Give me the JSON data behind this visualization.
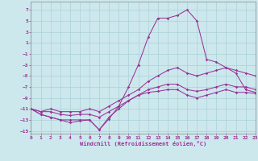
{
  "xlabel": "Windchill (Refroidissement éolien,°C)",
  "bg_color": "#cce8ed",
  "grid_color": "#aad0d8",
  "line_color": "#993399",
  "xlim": [
    0,
    23
  ],
  "ylim": [
    -15.5,
    8.5
  ],
  "xticks": [
    0,
    1,
    2,
    3,
    4,
    5,
    6,
    7,
    8,
    9,
    10,
    11,
    12,
    13,
    14,
    15,
    16,
    17,
    18,
    19,
    20,
    21,
    22,
    23
  ],
  "yticks": [
    -15,
    -13,
    -11,
    -9,
    -7,
    -5,
    -3,
    -1,
    1,
    3,
    5,
    7
  ],
  "lines": [
    {
      "x": [
        0,
        1,
        2,
        3,
        4,
        5,
        6,
        7,
        8,
        9,
        10,
        11,
        12,
        13,
        14,
        15,
        16,
        17,
        18,
        19,
        20,
        21,
        22,
        23
      ],
      "y": [
        -11,
        -12,
        -12.5,
        -13,
        -13.5,
        -13.2,
        -13,
        -14.8,
        -12.5,
        -11,
        -9.5,
        -8.5,
        -8,
        -7.8,
        -7.5,
        -7.5,
        -8.5,
        -9,
        -8.5,
        -8,
        -7.5,
        -8,
        -8,
        -8.2
      ]
    },
    {
      "x": [
        0,
        1,
        2,
        3,
        4,
        5,
        6,
        7,
        8,
        9,
        10,
        11,
        12,
        13,
        14,
        15,
        16,
        17,
        18,
        19,
        20,
        21,
        22,
        23
      ],
      "y": [
        -11,
        -11.5,
        -11.5,
        -12,
        -12.2,
        -12,
        -12,
        -12.5,
        -11.5,
        -10.5,
        -9.5,
        -8.5,
        -7.5,
        -7,
        -6.5,
        -6.5,
        -7.5,
        -7.8,
        -7.5,
        -7,
        -6.5,
        -7,
        -7,
        -7.5
      ]
    },
    {
      "x": [
        0,
        1,
        2,
        3,
        4,
        5,
        6,
        7,
        8,
        9,
        10,
        11,
        12,
        13,
        14,
        15,
        16,
        17,
        18,
        19,
        20,
        21,
        22,
        23
      ],
      "y": [
        -11,
        -11.5,
        -11,
        -11.5,
        -11.5,
        -11.5,
        -11,
        -11.5,
        -10.5,
        -9.5,
        -8.5,
        -7.5,
        -6,
        -5,
        -4,
        -3.5,
        -4.5,
        -5,
        -4.5,
        -4,
        -3.5,
        -4,
        -4.5,
        -5
      ]
    },
    {
      "x": [
        0,
        1,
        2,
        3,
        4,
        5,
        6,
        7,
        8,
        9,
        10,
        11,
        12,
        13,
        14,
        15,
        16,
        17,
        18,
        19,
        20,
        21,
        22,
        23
      ],
      "y": [
        -11,
        -12,
        -12.5,
        -13,
        -13,
        -13,
        -13,
        -14.8,
        -12.8,
        -10.5,
        -7,
        -3,
        2,
        5.5,
        5.5,
        6,
        7,
        5,
        -2,
        -2.5,
        -3.5,
        -4.5,
        -7.5,
        -8
      ]
    }
  ]
}
